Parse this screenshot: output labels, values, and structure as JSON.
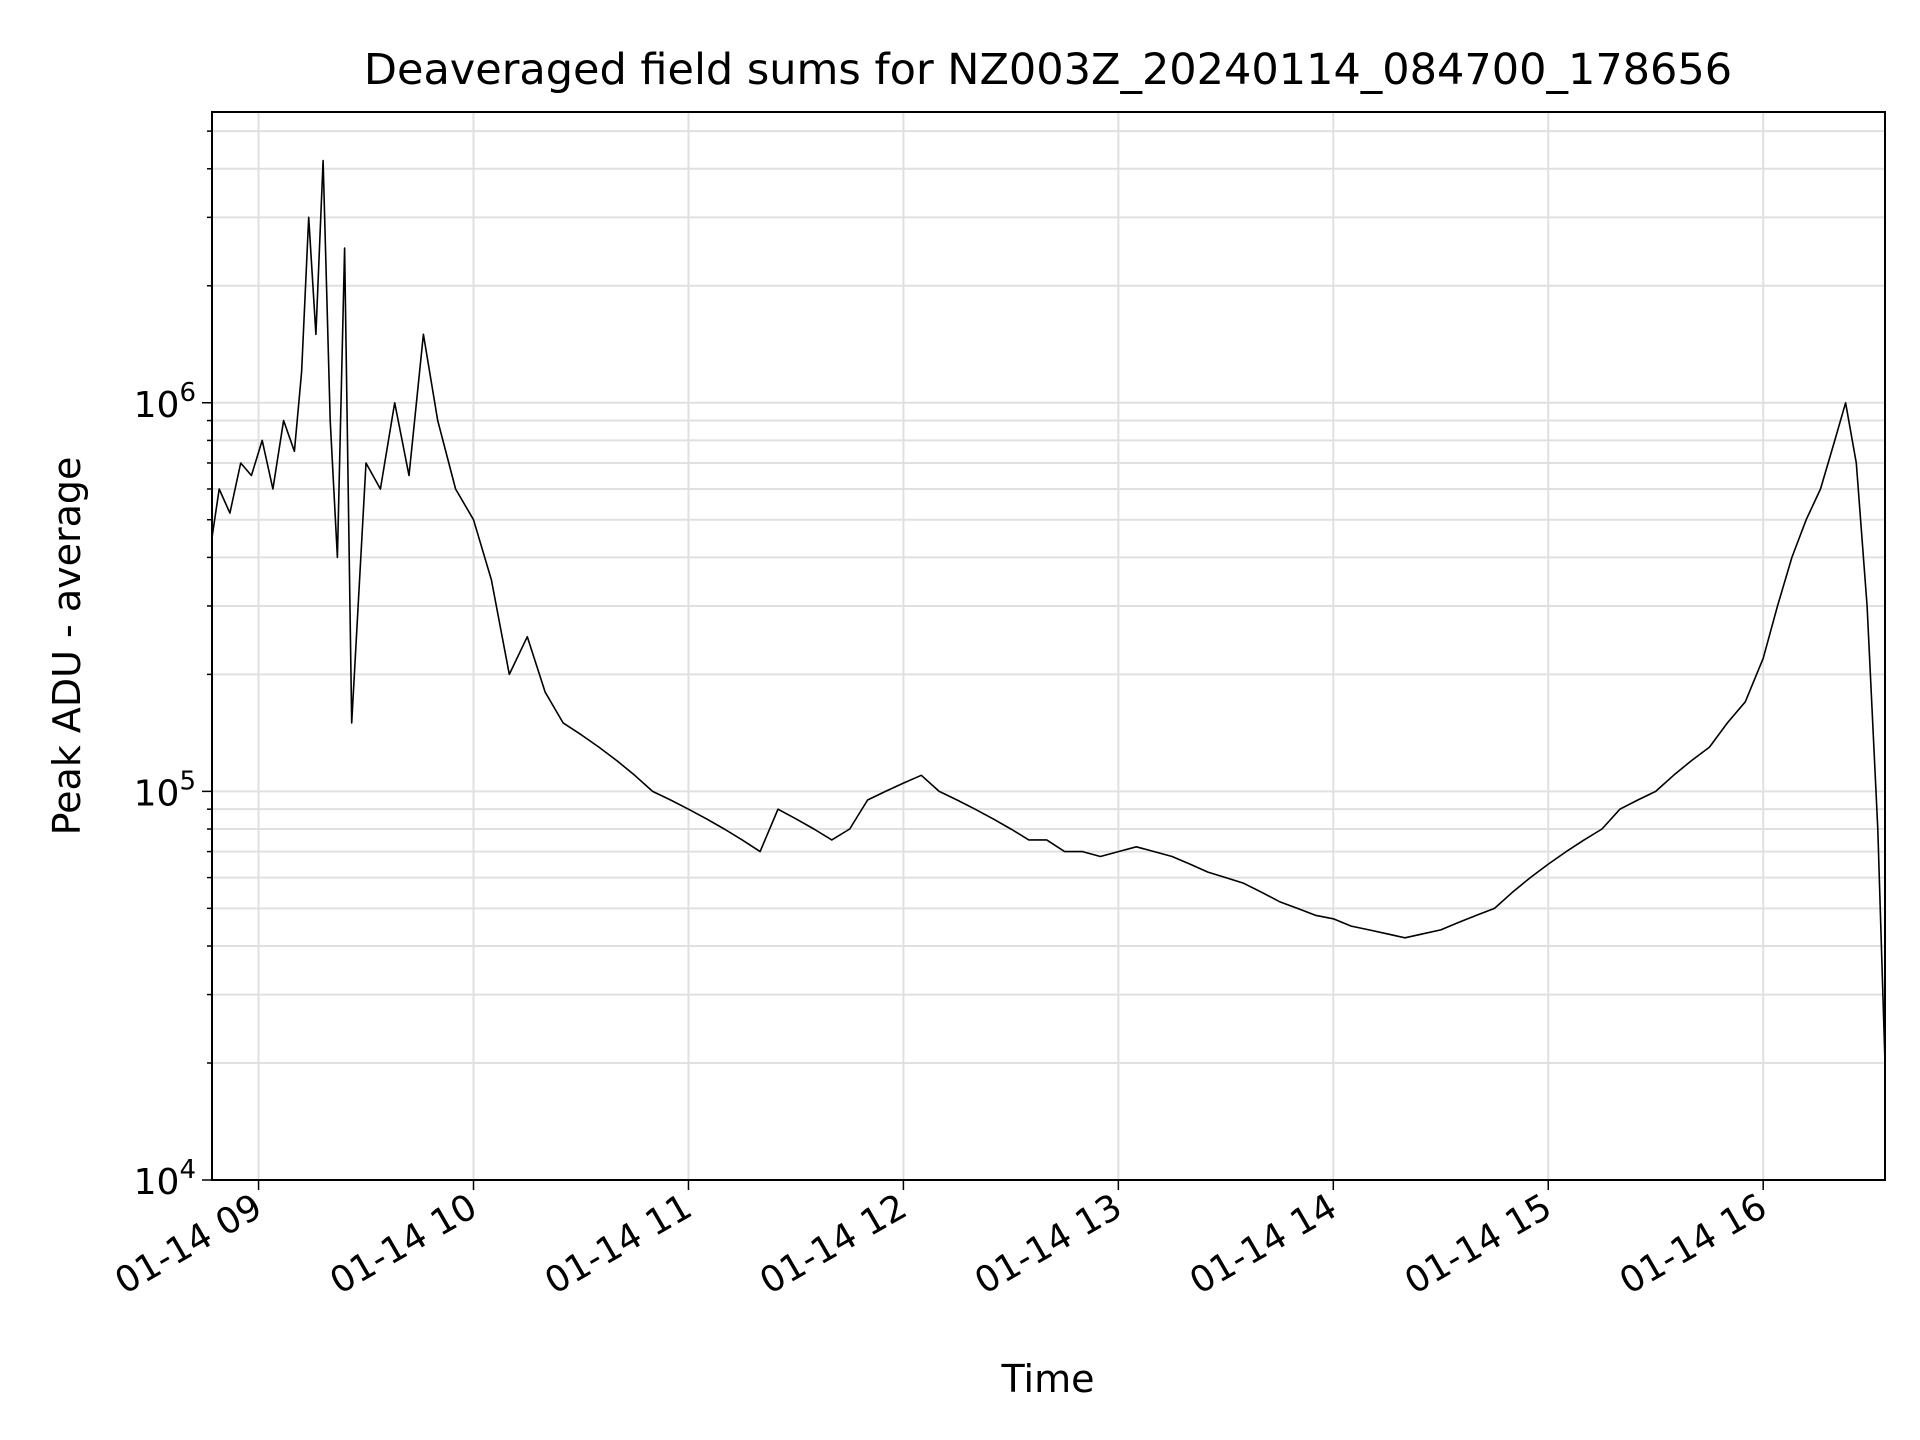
{
  "chart_data": {
    "type": "line",
    "title": "Deaveraged field sums for NZ003Z_20240114_084700_178656",
    "xlabel": "Time",
    "ylabel": "Peak ADU - average",
    "y_scale": "log",
    "ylim": [
      10000,
      5600000
    ],
    "xlim": [
      "2024-01-14 08:47",
      "2024-01-14 16:34"
    ],
    "grid": true,
    "line_color": "#000000",
    "x_ticks": [
      {
        "value": "2024-01-14 09:00",
        "label": "01-14 09"
      },
      {
        "value": "2024-01-14 10:00",
        "label": "01-14 10"
      },
      {
        "value": "2024-01-14 11:00",
        "label": "01-14 11"
      },
      {
        "value": "2024-01-14 12:00",
        "label": "01-14 12"
      },
      {
        "value": "2024-01-14 13:00",
        "label": "01-14 13"
      },
      {
        "value": "2024-01-14 14:00",
        "label": "01-14 14"
      },
      {
        "value": "2024-01-14 15:00",
        "label": "01-14 15"
      },
      {
        "value": "2024-01-14 16:00",
        "label": "01-14 16"
      }
    ],
    "y_ticks": [
      {
        "value": 10000,
        "base": "10",
        "exp": "4"
      },
      {
        "value": 100000,
        "base": "10",
        "exp": "5"
      },
      {
        "value": 1000000,
        "base": "10",
        "exp": "6"
      }
    ],
    "series": [
      {
        "x": [
          "2024-01-14 08:47",
          "2024-01-14 08:49",
          "2024-01-14 08:52",
          "2024-01-14 08:55",
          "2024-01-14 08:58",
          "2024-01-14 09:01",
          "2024-01-14 09:04",
          "2024-01-14 09:07",
          "2024-01-14 09:10",
          "2024-01-14 09:12",
          "2024-01-14 09:14",
          "2024-01-14 09:16",
          "2024-01-14 09:18",
          "2024-01-14 09:20",
          "2024-01-14 09:22",
          "2024-01-14 09:24",
          "2024-01-14 09:26",
          "2024-01-14 09:30",
          "2024-01-14 09:34",
          "2024-01-14 09:38",
          "2024-01-14 09:42",
          "2024-01-14 09:46",
          "2024-01-14 09:50",
          "2024-01-14 09:55",
          "2024-01-14 10:00",
          "2024-01-14 10:05",
          "2024-01-14 10:10",
          "2024-01-14 10:15",
          "2024-01-14 10:20",
          "2024-01-14 10:25",
          "2024-01-14 10:30",
          "2024-01-14 10:35",
          "2024-01-14 10:40",
          "2024-01-14 10:45",
          "2024-01-14 10:50",
          "2024-01-14 10:55",
          "2024-01-14 11:00",
          "2024-01-14 11:05",
          "2024-01-14 11:10",
          "2024-01-14 11:15",
          "2024-01-14 11:20",
          "2024-01-14 11:25",
          "2024-01-14 11:30",
          "2024-01-14 11:35",
          "2024-01-14 11:40",
          "2024-01-14 11:45",
          "2024-01-14 11:50",
          "2024-01-14 11:55",
          "2024-01-14 12:00",
          "2024-01-14 12:05",
          "2024-01-14 12:10",
          "2024-01-14 12:15",
          "2024-01-14 12:20",
          "2024-01-14 12:25",
          "2024-01-14 12:30",
          "2024-01-14 12:35",
          "2024-01-14 12:40",
          "2024-01-14 12:45",
          "2024-01-14 12:50",
          "2024-01-14 12:55",
          "2024-01-14 13:00",
          "2024-01-14 13:05",
          "2024-01-14 13:10",
          "2024-01-14 13:15",
          "2024-01-14 13:20",
          "2024-01-14 13:25",
          "2024-01-14 13:30",
          "2024-01-14 13:35",
          "2024-01-14 13:40",
          "2024-01-14 13:45",
          "2024-01-14 13:50",
          "2024-01-14 13:55",
          "2024-01-14 14:00",
          "2024-01-14 14:05",
          "2024-01-14 14:10",
          "2024-01-14 14:15",
          "2024-01-14 14:20",
          "2024-01-14 14:25",
          "2024-01-14 14:30",
          "2024-01-14 14:35",
          "2024-01-14 14:40",
          "2024-01-14 14:45",
          "2024-01-14 14:50",
          "2024-01-14 14:55",
          "2024-01-14 15:00",
          "2024-01-14 15:05",
          "2024-01-14 15:10",
          "2024-01-14 15:15",
          "2024-01-14 15:20",
          "2024-01-14 15:25",
          "2024-01-14 15:30",
          "2024-01-14 15:35",
          "2024-01-14 15:40",
          "2024-01-14 15:45",
          "2024-01-14 15:50",
          "2024-01-14 15:55",
          "2024-01-14 16:00",
          "2024-01-14 16:04",
          "2024-01-14 16:08",
          "2024-01-14 16:12",
          "2024-01-14 16:16",
          "2024-01-14 16:20",
          "2024-01-14 16:23",
          "2024-01-14 16:26",
          "2024-01-14 16:29",
          "2024-01-14 16:32",
          "2024-01-14 16:34"
        ],
        "y": [
          450000,
          600000,
          520000,
          700000,
          650000,
          800000,
          600000,
          900000,
          750000,
          1200000,
          3000000,
          1500000,
          4200000,
          900000,
          400000,
          2500000,
          150000,
          700000,
          600000,
          1000000,
          650000,
          1500000,
          900000,
          600000,
          500000,
          350000,
          200000,
          250000,
          180000,
          150000,
          140000,
          130000,
          120000,
          110000,
          100000,
          95000,
          90000,
          85000,
          80000,
          75000,
          70000,
          90000,
          85000,
          80000,
          75000,
          80000,
          95000,
          100000,
          105000,
          110000,
          100000,
          95000,
          90000,
          85000,
          80000,
          75000,
          75000,
          70000,
          70000,
          68000,
          70000,
          72000,
          70000,
          68000,
          65000,
          62000,
          60000,
          58000,
          55000,
          52000,
          50000,
          48000,
          47000,
          45000,
          44000,
          43000,
          42000,
          43000,
          44000,
          46000,
          48000,
          50000,
          55000,
          60000,
          65000,
          70000,
          75000,
          80000,
          90000,
          95000,
          100000,
          110000,
          120000,
          130000,
          150000,
          170000,
          220000,
          300000,
          400000,
          500000,
          600000,
          800000,
          1000000,
          700000,
          300000,
          80000,
          20000
        ]
      }
    ]
  }
}
